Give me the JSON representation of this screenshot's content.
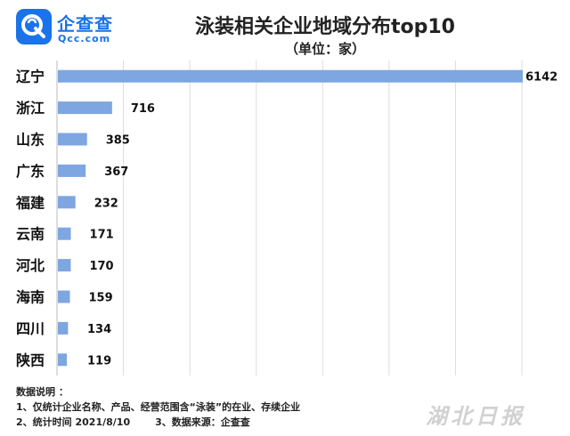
{
  "header": {
    "logo_name": "企查查",
    "logo_domain": "Qcc.com"
  },
  "chart_data": {
    "type": "bar",
    "orientation": "horizontal",
    "title": "泳装相关企业地域分布top10",
    "subtitle": "（单位：家）",
    "categories": [
      "辽宁",
      "浙江",
      "山东",
      "广东",
      "福建",
      "云南",
      "河北",
      "海南",
      "四川",
      "陕西"
    ],
    "values": [
      6142,
      716,
      385,
      367,
      232,
      171,
      170,
      159,
      134,
      119
    ],
    "xlim": [
      0,
      6142
    ],
    "grid": true,
    "bar_color": "#7ea6e0"
  },
  "notes": {
    "heading": "数据说明 ：",
    "line1": "1、仅统计企业名称、产品、经营范围含“泳装”的在业、存续企业",
    "line2_a": "2、统计时间  2021/8/10",
    "line2_b": "3、数据来源：企查查"
  },
  "watermark": "湖北日报"
}
